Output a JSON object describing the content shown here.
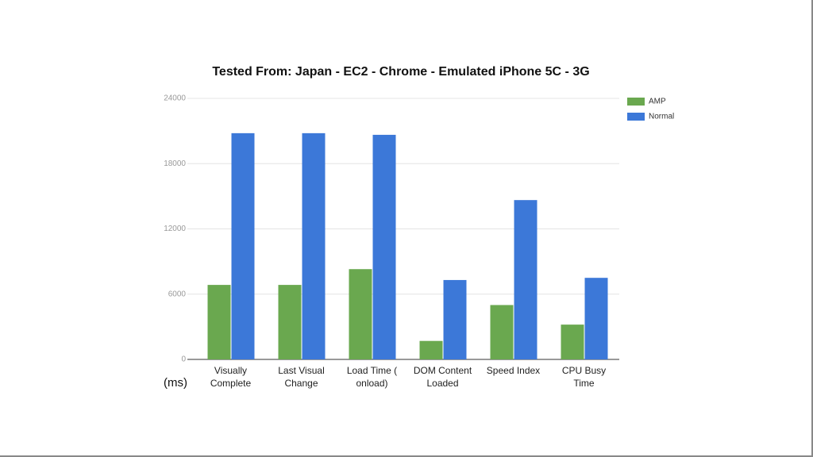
{
  "chart_data": {
    "type": "bar",
    "title": "Tested From: Japan - EC2 - Chrome - Emulated iPhone 5C - 3G",
    "y_label": "(ms)",
    "categories": [
      "Visually Complete",
      "Last Visual Change",
      "Load Time ( onload)",
      "DOM Content Loaded",
      "Speed Index",
      "CPU Busy Time"
    ],
    "series": [
      {
        "name": "AMP",
        "color": "#6aa84f",
        "values": [
          6850,
          6850,
          8300,
          1700,
          5000,
          3200
        ]
      },
      {
        "name": "Normal",
        "color": "#3c78d8",
        "values": [
          20800,
          20800,
          20650,
          7300,
          14650,
          7500
        ]
      }
    ],
    "ylim": [
      0,
      24000
    ],
    "yticks": [
      0,
      6000,
      12000,
      18000,
      24000
    ],
    "grid": true,
    "legend": "top-right"
  }
}
